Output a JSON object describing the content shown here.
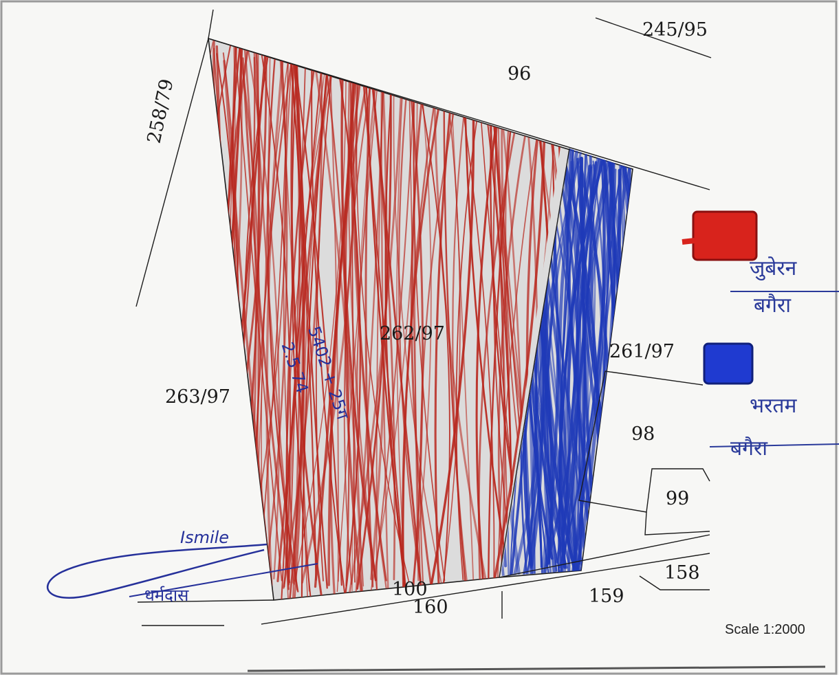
{
  "map": {
    "scale": "Scale 1:2000",
    "plots": {
      "p_262_97": "262/97",
      "p_263_97": "263/97",
      "p_258_79": "258/79",
      "p_245_95": "245/95",
      "p_96": "96",
      "p_261_97": "261/97",
      "p_98": "98",
      "p_99": "99",
      "p_158": "158",
      "p_159": "159",
      "p_100": "100",
      "p_160": "160"
    },
    "fill_colors": {
      "plot_fill": "#d9d9d9",
      "red_hatch": "#b8281f",
      "blue_hatch": "#1f3ab8",
      "ink": "#25309a"
    },
    "legend": [
      {
        "color": "red",
        "swatch_color": "#d8231c",
        "label_top": "जुबेरन",
        "label_bottom": "बगैरा"
      },
      {
        "color": "blue",
        "swatch_color": "#1f3ad0",
        "label_top": "भरतम",
        "label_bottom": "बगैरा"
      }
    ],
    "annotations": {
      "inside_plot_line1": "5402 + 25ग",
      "inside_plot_line2": "2.5 74"
    },
    "signatures": {
      "sig1": "Ismile",
      "sig2": "धर्मदास"
    }
  }
}
